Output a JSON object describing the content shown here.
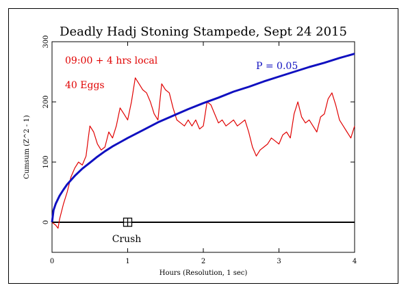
{
  "chart_data": {
    "type": "line",
    "title": "Deadly Hadj Stoning Stampede, Sept 24 2015",
    "xlabel": "Hours (Resolution, 1 sec)",
    "ylabel": "Cumsum (Z^2 - 1)",
    "xlim": [
      0,
      4
    ],
    "ylim": [
      -50,
      300
    ],
    "x_ticks": [
      0,
      1,
      2,
      3,
      4
    ],
    "x_tick_labels": [
      "0",
      "1",
      "2",
      "3",
      "4"
    ],
    "y_ticks": [
      0,
      100,
      200,
      300
    ],
    "y_tick_labels": [
      "0",
      "100",
      "200",
      "300"
    ],
    "grid": false,
    "annotations": [
      {
        "text": "09:00 + 4 hrs local",
        "color": "#e00000"
      },
      {
        "text": "40 Eggs",
        "color": "#e00000"
      },
      {
        "text": "P = 0.05",
        "color": "#1010c0"
      },
      {
        "text": "Crush",
        "color": "#000000",
        "x": 1.0,
        "y": 0
      }
    ],
    "reference_line": {
      "y": 0,
      "color": "#000000"
    },
    "event_marker": {
      "x": 1.0,
      "y": 0,
      "label": "Crush"
    },
    "series": [
      {
        "color": "#e00000",
        "x": [
          0.0,
          0.05,
          0.08,
          0.1,
          0.15,
          0.2,
          0.25,
          0.3,
          0.35,
          0.4,
          0.45,
          0.48,
          0.5,
          0.55,
          0.6,
          0.65,
          0.7,
          0.75,
          0.8,
          0.85,
          0.9,
          0.95,
          1.0,
          1.05,
          1.1,
          1.15,
          1.2,
          1.25,
          1.3,
          1.35,
          1.4,
          1.45,
          1.5,
          1.55,
          1.6,
          1.65,
          1.7,
          1.75,
          1.8,
          1.85,
          1.9,
          1.95,
          2.0,
          2.05,
          2.1,
          2.15,
          2.2,
          2.25,
          2.3,
          2.35,
          2.4,
          2.45,
          2.5,
          2.55,
          2.6,
          2.65,
          2.7,
          2.75,
          2.8,
          2.85,
          2.9,
          2.95,
          3.0,
          3.05,
          3.1,
          3.15,
          3.2,
          3.25,
          3.3,
          3.35,
          3.4,
          3.45,
          3.5,
          3.55,
          3.6,
          3.65,
          3.7,
          3.75,
          3.8,
          3.85,
          3.9,
          3.95,
          4.0
        ],
        "y": [
          0,
          -5,
          -10,
          5,
          30,
          50,
          75,
          90,
          100,
          95,
          110,
          140,
          160,
          150,
          130,
          120,
          125,
          150,
          140,
          160,
          190,
          180,
          170,
          200,
          240,
          230,
          220,
          215,
          200,
          180,
          170,
          230,
          220,
          215,
          190,
          170,
          165,
          160,
          170,
          160,
          170,
          155,
          160,
          200,
          195,
          180,
          165,
          170,
          160,
          165,
          170,
          160,
          165,
          170,
          150,
          125,
          110,
          120,
          125,
          130,
          140,
          135,
          130,
          145,
          150,
          140,
          180,
          200,
          175,
          165,
          170,
          160,
          150,
          175,
          180,
          205,
          215,
          195,
          170,
          160,
          150,
          140,
          160
        ]
      },
      {
        "name": "P = 0.05",
        "color": "#1010c0",
        "x": [
          0.0,
          0.02,
          0.05,
          0.1,
          0.15,
          0.2,
          0.3,
          0.4,
          0.5,
          0.6,
          0.7,
          0.8,
          0.9,
          1.0,
          1.2,
          1.4,
          1.6,
          1.8,
          2.0,
          2.2,
          2.4,
          2.6,
          2.8,
          3.0,
          3.2,
          3.4,
          3.6,
          3.8,
          4.0
        ],
        "y": [
          0,
          20,
          31,
          44,
          54,
          63,
          77,
          89,
          99,
          109,
          118,
          126,
          133,
          140,
          153,
          166,
          177,
          188,
          198,
          207,
          217,
          225,
          234,
          242,
          250,
          258,
          265,
          273,
          280
        ]
      }
    ]
  }
}
